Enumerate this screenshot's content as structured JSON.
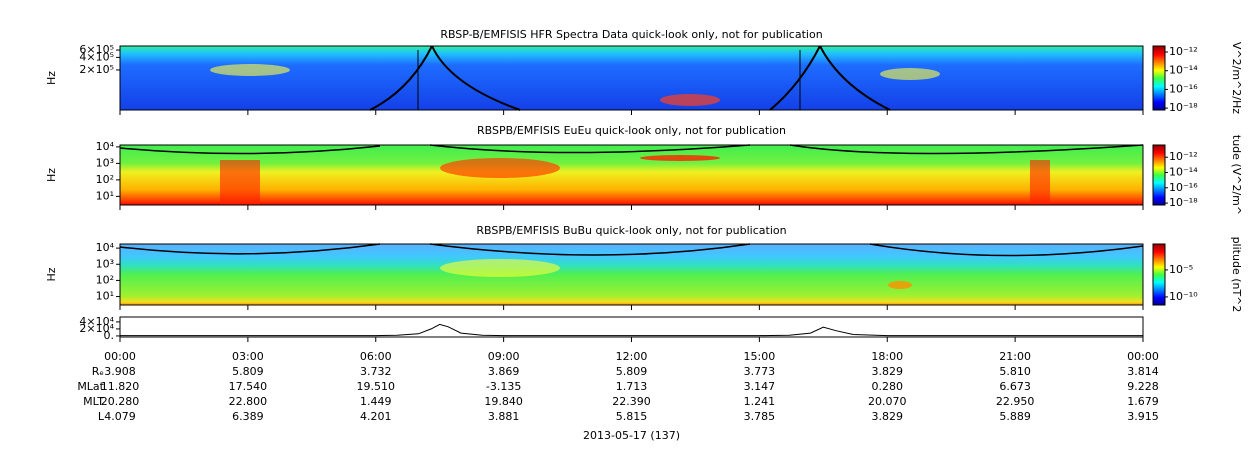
{
  "chart_data": [
    {
      "type": "spectrogram",
      "title": "RBSP-B/EMFISIS  HFR Spectra Data quick-look only, not for publication",
      "ylabel": "Hz",
      "ylog": true,
      "ylim": [
        22000,
        750000
      ],
      "yticks": [
        {
          "value": 600000,
          "label": "6×10⁵"
        },
        {
          "value": 400000,
          "label": "4×10⁵"
        },
        {
          "value": 200000,
          "label": "2×10⁵"
        }
      ],
      "colorbar_label": "V^2/m^2/Hz",
      "clim": [
        6.3e-19,
        4.4e-12
      ],
      "cticks": [
        {
          "value": 1e-12,
          "label": "10⁻¹²"
        },
        {
          "value": 1e-14,
          "label": "10⁻¹⁴"
        },
        {
          "value": 1e-16,
          "label": "10⁻¹⁶"
        },
        {
          "value": 1e-18,
          "label": "10⁻¹⁸"
        }
      ]
    },
    {
      "type": "spectrogram",
      "title": "RBSPB/EMFISIS  EuEu quick-look only, not for publication",
      "ylabel": "Hz",
      "ylog": true,
      "ylim": [
        3,
        13000
      ],
      "yticks": [
        {
          "value": 10000,
          "label": "10⁴"
        },
        {
          "value": 1000,
          "label": "10³"
        },
        {
          "value": 100,
          "label": "10²"
        },
        {
          "value": 10,
          "label": "10¹"
        }
      ],
      "colorbar_label": "tude (V^2/m^",
      "clim": [
        5.6e-19,
        4e-11
      ],
      "cticks": [
        {
          "value": 1e-12,
          "label": "10⁻¹²"
        },
        {
          "value": 1e-14,
          "label": "10⁻¹⁴"
        },
        {
          "value": 1e-16,
          "label": "10⁻¹⁶"
        },
        {
          "value": 1e-18,
          "label": "10⁻¹⁸"
        }
      ]
    },
    {
      "type": "spectrogram",
      "title": "RBSPB/EMFISIS  BuBu quick-look only, not for publication",
      "ylabel": "Hz",
      "ylog": true,
      "ylim": [
        3,
        18000
      ],
      "yticks": [
        {
          "value": 10000,
          "label": "10⁴"
        },
        {
          "value": 1000,
          "label": "10³"
        },
        {
          "value": 100,
          "label": "10²"
        },
        {
          "value": 10,
          "label": "10¹"
        }
      ],
      "colorbar_label": "plitude (nT^2",
      "clim": [
        3.2e-12,
        0.63
      ],
      "cticks": [
        {
          "value": 1e-05,
          "label": "10⁻⁵"
        },
        {
          "value": 1e-10,
          "label": "10⁻¹⁰"
        }
      ]
    },
    {
      "type": "line",
      "ylog": false,
      "ylim": [
        -3000,
        54000
      ],
      "yticks": [
        {
          "value": 40000,
          "label": "4×10⁴"
        },
        {
          "value": 20000,
          "label": "2×10⁴"
        },
        {
          "value": 0,
          "label": "0."
        }
      ],
      "xlim": [
        0,
        24
      ],
      "xticks": [
        {
          "value": 0,
          "label": "00:00"
        },
        {
          "value": 3,
          "label": "03:00"
        },
        {
          "value": 6,
          "label": "06:00"
        },
        {
          "value": 9,
          "label": "09:00"
        },
        {
          "value": 12,
          "label": "12:00"
        },
        {
          "value": 15,
          "label": "15:00"
        },
        {
          "value": 18,
          "label": "18:00"
        },
        {
          "value": 21,
          "label": "21:00"
        },
        {
          "value": 24,
          "label": "00:00"
        }
      ],
      "x": [
        0,
        6,
        6.5,
        7,
        7.3,
        7.5,
        7.7,
        8,
        8.5,
        9,
        15,
        15.7,
        16.2,
        16.5,
        16.8,
        17.2,
        18,
        24
      ],
      "values": [
        1000,
        1000,
        2000,
        6000,
        20000,
        33000,
        26000,
        8000,
        2000,
        1000,
        1000,
        2000,
        8000,
        25000,
        15000,
        4000,
        1000,
        1000
      ],
      "color": "#000000"
    }
  ],
  "ephemeris": [
    {
      "label": "Rₑ",
      "values": [
        "3.908",
        "5.809",
        "3.732",
        "3.869",
        "5.809",
        "3.773",
        "3.829",
        "5.810",
        "3.814"
      ]
    },
    {
      "label": "MLat",
      "values": [
        "11.820",
        "17.540",
        "19.510",
        "-3.135",
        "1.713",
        "3.147",
        "0.280",
        "6.673",
        "9.228"
      ]
    },
    {
      "label": "MLT",
      "values": [
        "20.280",
        "22.800",
        "1.449",
        "19.840",
        "22.390",
        "1.241",
        "20.070",
        "22.950",
        "1.679"
      ]
    },
    {
      "label": "L",
      "values": [
        "4.079",
        "6.389",
        "4.201",
        "3.881",
        "5.815",
        "3.785",
        "3.829",
        "5.889",
        "3.915"
      ]
    }
  ],
  "date_label": "2013-05-17 (137)"
}
